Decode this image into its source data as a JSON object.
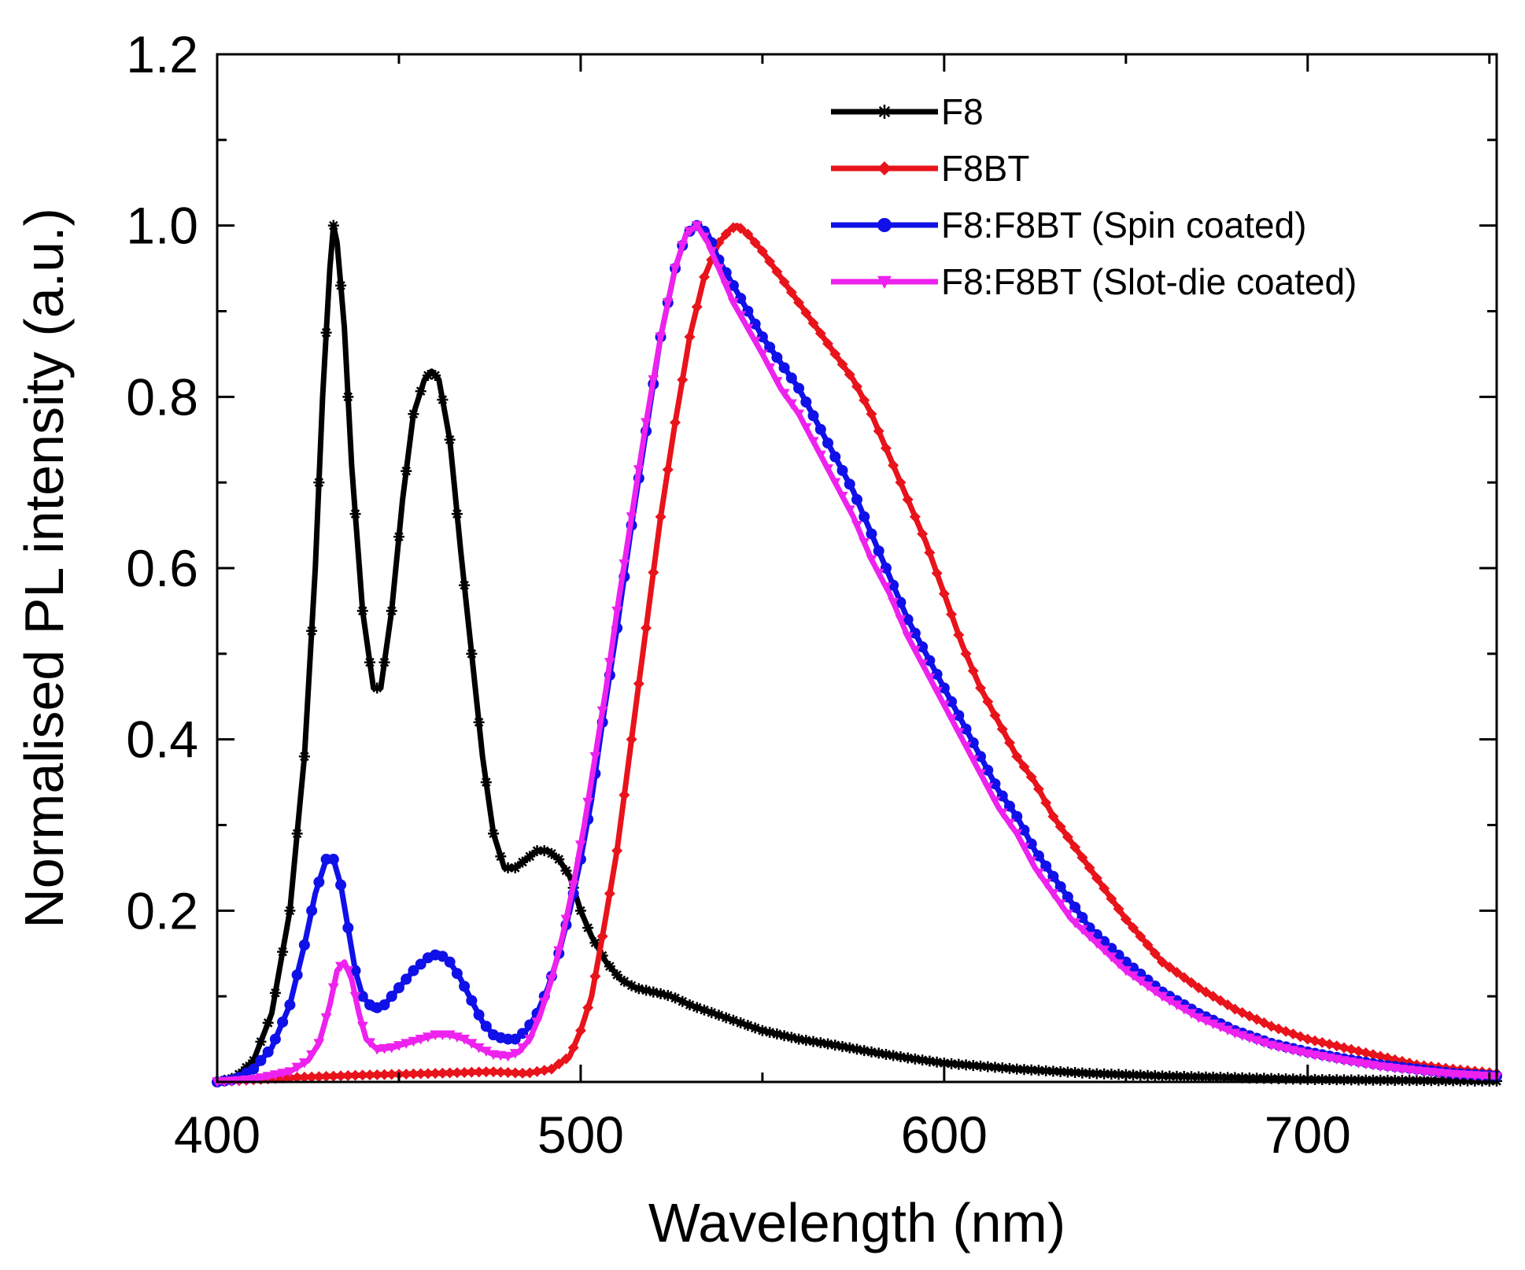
{
  "chart_data": {
    "type": "line",
    "title": "",
    "xlabel": "Wavelength (nm)",
    "ylabel": "Normalised PL intensity (a.u.)",
    "xlim": [
      400,
      752
    ],
    "ylim": [
      0,
      1.2
    ],
    "xticks": [
      400,
      500,
      600,
      700
    ],
    "xtick_labels": [
      "400",
      "500",
      "600",
      "700"
    ],
    "yticks": [
      0.2,
      0.4,
      0.6,
      0.8,
      1.0,
      1.2
    ],
    "ytick_labels": [
      "0.2",
      "0.4",
      "0.6",
      "0.8",
      "1.0",
      "1.2"
    ],
    "grid": false,
    "legend_position": "top-right",
    "series": [
      {
        "name": "F8",
        "color": "#000000",
        "marker": "star",
        "points": [
          [
            400,
            0.0
          ],
          [
            405,
            0.005
          ],
          [
            410,
            0.025
          ],
          [
            415,
            0.08
          ],
          [
            420,
            0.2
          ],
          [
            424,
            0.38
          ],
          [
            427,
            0.6
          ],
          [
            429,
            0.8
          ],
          [
            431,
            0.95
          ],
          [
            432,
            1.0
          ],
          [
            433,
            0.98
          ],
          [
            435,
            0.88
          ],
          [
            437,
            0.72
          ],
          [
            440,
            0.55
          ],
          [
            443,
            0.46
          ],
          [
            445,
            0.46
          ],
          [
            448,
            0.55
          ],
          [
            451,
            0.68
          ],
          [
            454,
            0.78
          ],
          [
            457,
            0.82
          ],
          [
            459,
            0.83
          ],
          [
            461,
            0.82
          ],
          [
            464,
            0.75
          ],
          [
            467,
            0.62
          ],
          [
            470,
            0.5
          ],
          [
            473,
            0.38
          ],
          [
            476,
            0.29
          ],
          [
            479,
            0.25
          ],
          [
            482,
            0.25
          ],
          [
            485,
            0.26
          ],
          [
            488,
            0.27
          ],
          [
            491,
            0.27
          ],
          [
            494,
            0.26
          ],
          [
            497,
            0.24
          ],
          [
            500,
            0.2
          ],
          [
            503,
            0.17
          ],
          [
            507,
            0.14
          ],
          [
            511,
            0.12
          ],
          [
            515,
            0.11
          ],
          [
            520,
            0.105
          ],
          [
            525,
            0.1
          ],
          [
            530,
            0.09
          ],
          [
            540,
            0.075
          ],
          [
            550,
            0.06
          ],
          [
            560,
            0.05
          ],
          [
            570,
            0.043
          ],
          [
            580,
            0.035
          ],
          [
            590,
            0.028
          ],
          [
            600,
            0.022
          ],
          [
            620,
            0.015
          ],
          [
            640,
            0.01
          ],
          [
            660,
            0.007
          ],
          [
            680,
            0.005
          ],
          [
            700,
            0.003
          ],
          [
            720,
            0.002
          ],
          [
            752,
            0.001
          ]
        ]
      },
      {
        "name": "F8BT",
        "color": "#e8131b",
        "marker": "diamond",
        "points": [
          [
            400,
            0.0
          ],
          [
            420,
            0.005
          ],
          [
            440,
            0.008
          ],
          [
            460,
            0.01
          ],
          [
            475,
            0.012
          ],
          [
            485,
            0.01
          ],
          [
            492,
            0.015
          ],
          [
            497,
            0.03
          ],
          [
            500,
            0.06
          ],
          [
            503,
            0.1
          ],
          [
            506,
            0.17
          ],
          [
            510,
            0.27
          ],
          [
            514,
            0.4
          ],
          [
            518,
            0.53
          ],
          [
            522,
            0.66
          ],
          [
            526,
            0.77
          ],
          [
            530,
            0.87
          ],
          [
            534,
            0.94
          ],
          [
            538,
            0.98
          ],
          [
            541,
            0.995
          ],
          [
            543,
            1.0
          ],
          [
            546,
            0.99
          ],
          [
            550,
            0.97
          ],
          [
            555,
            0.94
          ],
          [
            560,
            0.91
          ],
          [
            565,
            0.88
          ],
          [
            570,
            0.85
          ],
          [
            575,
            0.82
          ],
          [
            580,
            0.78
          ],
          [
            585,
            0.73
          ],
          [
            590,
            0.68
          ],
          [
            595,
            0.63
          ],
          [
            600,
            0.57
          ],
          [
            605,
            0.51
          ],
          [
            610,
            0.46
          ],
          [
            615,
            0.42
          ],
          [
            620,
            0.38
          ],
          [
            625,
            0.35
          ],
          [
            630,
            0.31
          ],
          [
            635,
            0.28
          ],
          [
            640,
            0.25
          ],
          [
            645,
            0.22
          ],
          [
            650,
            0.19
          ],
          [
            655,
            0.165
          ],
          [
            660,
            0.14
          ],
          [
            670,
            0.11
          ],
          [
            680,
            0.085
          ],
          [
            690,
            0.065
          ],
          [
            700,
            0.05
          ],
          [
            710,
            0.04
          ],
          [
            720,
            0.03
          ],
          [
            730,
            0.02
          ],
          [
            740,
            0.015
          ],
          [
            752,
            0.01
          ]
        ]
      },
      {
        "name": "F8:F8BT (Spin coated)",
        "color": "#1010e8",
        "marker": "circle",
        "points": [
          [
            400,
            0.0
          ],
          [
            405,
            0.003
          ],
          [
            410,
            0.015
          ],
          [
            415,
            0.04
          ],
          [
            420,
            0.09
          ],
          [
            424,
            0.16
          ],
          [
            427,
            0.22
          ],
          [
            430,
            0.26
          ],
          [
            432,
            0.26
          ],
          [
            434,
            0.23
          ],
          [
            436,
            0.18
          ],
          [
            438,
            0.13
          ],
          [
            440,
            0.1
          ],
          [
            443,
            0.085
          ],
          [
            446,
            0.09
          ],
          [
            450,
            0.11
          ],
          [
            454,
            0.13
          ],
          [
            458,
            0.145
          ],
          [
            461,
            0.15
          ],
          [
            464,
            0.14
          ],
          [
            467,
            0.12
          ],
          [
            470,
            0.095
          ],
          [
            473,
            0.07
          ],
          [
            476,
            0.055
          ],
          [
            479,
            0.05
          ],
          [
            482,
            0.05
          ],
          [
            485,
            0.06
          ],
          [
            488,
            0.08
          ],
          [
            491,
            0.11
          ],
          [
            494,
            0.15
          ],
          [
            497,
            0.2
          ],
          [
            500,
            0.26
          ],
          [
            503,
            0.33
          ],
          [
            506,
            0.42
          ],
          [
            510,
            0.53
          ],
          [
            514,
            0.65
          ],
          [
            518,
            0.76
          ],
          [
            522,
            0.87
          ],
          [
            526,
            0.95
          ],
          [
            529,
            0.99
          ],
          [
            532,
            1.0
          ],
          [
            535,
            0.99
          ],
          [
            538,
            0.96
          ],
          [
            542,
            0.93
          ],
          [
            546,
            0.9
          ],
          [
            550,
            0.87
          ],
          [
            555,
            0.84
          ],
          [
            560,
            0.81
          ],
          [
            565,
            0.77
          ],
          [
            570,
            0.73
          ],
          [
            575,
            0.69
          ],
          [
            580,
            0.64
          ],
          [
            585,
            0.59
          ],
          [
            590,
            0.54
          ],
          [
            595,
            0.5
          ],
          [
            600,
            0.46
          ],
          [
            605,
            0.42
          ],
          [
            610,
            0.38
          ],
          [
            615,
            0.34
          ],
          [
            620,
            0.31
          ],
          [
            625,
            0.27
          ],
          [
            630,
            0.24
          ],
          [
            635,
            0.21
          ],
          [
            640,
            0.18
          ],
          [
            645,
            0.16
          ],
          [
            650,
            0.14
          ],
          [
            660,
            0.105
          ],
          [
            670,
            0.08
          ],
          [
            680,
            0.06
          ],
          [
            690,
            0.045
          ],
          [
            700,
            0.035
          ],
          [
            710,
            0.027
          ],
          [
            720,
            0.02
          ],
          [
            730,
            0.015
          ],
          [
            740,
            0.01
          ],
          [
            752,
            0.007
          ]
        ]
      },
      {
        "name": "F8:F8BT (Slot-die coated)",
        "color": "#ee22ee",
        "marker": "triangle-down",
        "points": [
          [
            400,
            0.0
          ],
          [
            410,
            0.003
          ],
          [
            420,
            0.012
          ],
          [
            425,
            0.025
          ],
          [
            428,
            0.045
          ],
          [
            431,
            0.09
          ],
          [
            433,
            0.13
          ],
          [
            435,
            0.14
          ],
          [
            437,
            0.12
          ],
          [
            439,
            0.08
          ],
          [
            441,
            0.05
          ],
          [
            444,
            0.038
          ],
          [
            448,
            0.04
          ],
          [
            452,
            0.045
          ],
          [
            456,
            0.05
          ],
          [
            460,
            0.055
          ],
          [
            464,
            0.055
          ],
          [
            468,
            0.05
          ],
          [
            472,
            0.04
          ],
          [
            476,
            0.032
          ],
          [
            480,
            0.03
          ],
          [
            483,
            0.035
          ],
          [
            486,
            0.05
          ],
          [
            489,
            0.08
          ],
          [
            492,
            0.12
          ],
          [
            495,
            0.17
          ],
          [
            498,
            0.23
          ],
          [
            501,
            0.3
          ],
          [
            504,
            0.38
          ],
          [
            507,
            0.46
          ],
          [
            510,
            0.55
          ],
          [
            514,
            0.66
          ],
          [
            518,
            0.77
          ],
          [
            522,
            0.87
          ],
          [
            526,
            0.95
          ],
          [
            529,
            0.99
          ],
          [
            532,
            1.0
          ],
          [
            535,
            0.98
          ],
          [
            538,
            0.95
          ],
          [
            542,
            0.91
          ],
          [
            546,
            0.88
          ],
          [
            550,
            0.85
          ],
          [
            555,
            0.81
          ],
          [
            560,
            0.78
          ],
          [
            565,
            0.74
          ],
          [
            570,
            0.7
          ],
          [
            575,
            0.66
          ],
          [
            580,
            0.61
          ],
          [
            585,
            0.57
          ],
          [
            590,
            0.52
          ],
          [
            595,
            0.48
          ],
          [
            600,
            0.44
          ],
          [
            605,
            0.4
          ],
          [
            610,
            0.36
          ],
          [
            615,
            0.32
          ],
          [
            620,
            0.29
          ],
          [
            625,
            0.25
          ],
          [
            630,
            0.22
          ],
          [
            635,
            0.19
          ],
          [
            640,
            0.17
          ],
          [
            645,
            0.15
          ],
          [
            650,
            0.13
          ],
          [
            660,
            0.1
          ],
          [
            670,
            0.075
          ],
          [
            680,
            0.057
          ],
          [
            690,
            0.043
          ],
          [
            700,
            0.033
          ],
          [
            710,
            0.025
          ],
          [
            720,
            0.018
          ],
          [
            730,
            0.013
          ],
          [
            740,
            0.009
          ],
          [
            752,
            0.006
          ]
        ]
      }
    ]
  }
}
